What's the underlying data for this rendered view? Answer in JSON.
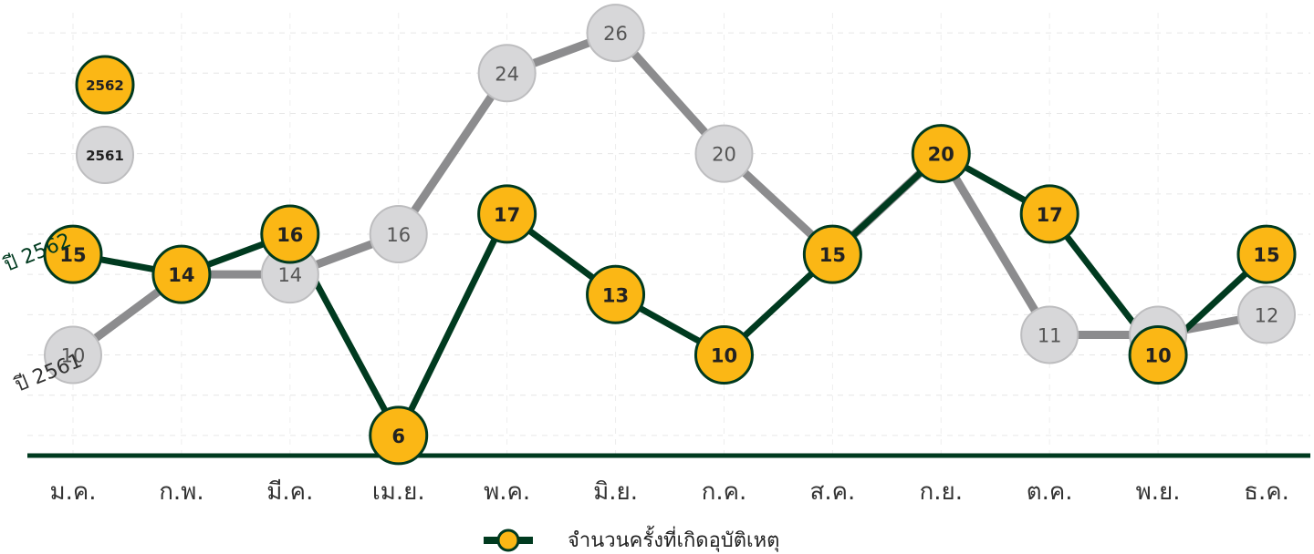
{
  "chart_data": {
    "type": "line",
    "categories": [
      "ม.ค.",
      "ก.พ.",
      "มี.ค.",
      "เม.ย.",
      "พ.ค.",
      "มิ.ย.",
      "ก.ค.",
      "ส.ค.",
      "ก.ย.",
      "ต.ค.",
      "พ.ย.",
      "ธ.ค."
    ],
    "series": [
      {
        "name": "2562",
        "line_label": "ปี 2562",
        "color": "#003a1f",
        "marker_color": "#fbb715",
        "values": [
          15,
          14,
          16,
          6,
          17,
          13,
          10,
          15,
          20,
          17,
          10,
          15
        ]
      },
      {
        "name": "2561",
        "line_label": "ปี 2561",
        "color": "#8c8c8e",
        "marker_color": "#d7d7d9",
        "values": [
          10,
          14,
          14,
          16,
          24,
          26,
          20,
          15,
          20,
          11,
          11,
          12
        ]
      }
    ],
    "legend": {
      "label": "จำนวนครั้งที่เกิดอุบัติเหตุ",
      "position": "bottom-center"
    },
    "ylim": [
      5,
      27
    ],
    "grid": true,
    "xlabel": "",
    "ylabel": ""
  }
}
